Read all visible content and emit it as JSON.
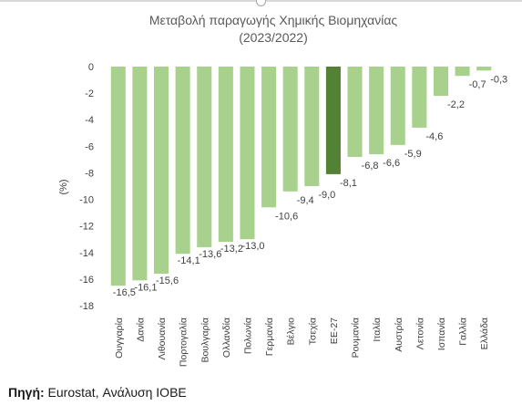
{
  "chart_data": {
    "type": "bar",
    "title_line1": "Μεταβολή παραγωγής Χημικής Βιομηχανίας",
    "title_line2": "(2023/2022)",
    "ylabel": "(%)",
    "xlabel": "",
    "ylim": [
      -18,
      0
    ],
    "yticks": [
      0,
      -2,
      -4,
      -6,
      -8,
      -10,
      -12,
      -14,
      -16,
      -18
    ],
    "grid": false,
    "legend": "none",
    "categories": [
      "Ουγγαρία",
      "Δανία",
      "Λιθουανία",
      "Πορτογαλία",
      "Βουλγαρία",
      "Ολλανδία",
      "Πολωνία",
      "Γερμανία",
      "Βέλγιο",
      "Τσεχία",
      "ΕΕ-27",
      "Ρουμανία",
      "Ιταλία",
      "Αυστρία",
      "Λετονία",
      "Ισπανία",
      "Γαλλία",
      "Ελλάδα"
    ],
    "values": [
      -16.5,
      -16.1,
      -15.6,
      -14.1,
      -13.6,
      -13.2,
      -13.0,
      -10.6,
      -9.4,
      -9.0,
      -8.1,
      -6.8,
      -6.6,
      -5.9,
      -4.6,
      -2.2,
      -0.7,
      -0.3
    ],
    "data_labels": [
      "-16,5",
      "-16,1",
      "-15,6",
      "-14,1",
      "-13,6",
      "-13,2",
      "-13,0",
      "-10,6",
      "-9,4",
      "-9,0",
      "-8,1",
      "-6,8",
      "-6,6",
      "-5,9",
      "-4,6",
      "-2,2",
      "-0,7",
      "-0,3"
    ],
    "highlight_category": "ΕΕ-27",
    "colors": {
      "bar": "#a9d18e",
      "highlight": "#548235",
      "text": "#404040",
      "title": "#595959"
    }
  },
  "source": {
    "label": "Πηγή:",
    "text": " Eurostat, Ανάλυση ΙΟΒΕ"
  }
}
